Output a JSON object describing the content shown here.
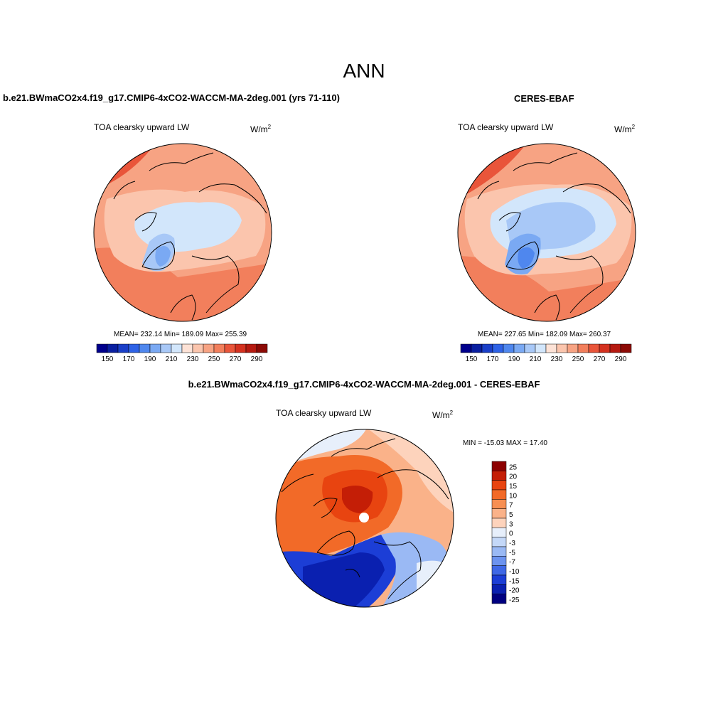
{
  "page_title": "ANN",
  "panels": [
    {
      "title": "b.e21.BWmaCO2x4.f19_g17.CMIP6-4xCO2-WACCM-MA-2deg.001 (yrs 71-110)",
      "variable": "TOA clearsky upward LW",
      "units_base": "W/m",
      "units_exp": "2",
      "stats": "MEAN= 232.14  Min= 189.09  Max= 255.39",
      "colorbar": {
        "colors": [
          "#00008c",
          "#0a1fa0",
          "#1a3fc8",
          "#2e62e6",
          "#4f87ee",
          "#7aa9f3",
          "#a8c8f7",
          "#d2e6fb",
          "#fde2d6",
          "#fbc5ad",
          "#f7a383",
          "#f27f5c",
          "#e9553a",
          "#d4311f",
          "#b51a10",
          "#8c0a05"
        ],
        "tick_labels": [
          "150",
          "170",
          "190",
          "210",
          "230",
          "250",
          "270",
          "290"
        ]
      }
    },
    {
      "title": "CERES-EBAF",
      "variable": "TOA clearsky upward LW",
      "units_base": "W/m",
      "units_exp": "2",
      "stats": "MEAN= 227.65  Min= 182.09  Max= 260.37",
      "colorbar": {
        "colors": [
          "#00008c",
          "#0a1fa0",
          "#1a3fc8",
          "#2e62e6",
          "#4f87ee",
          "#7aa9f3",
          "#a8c8f7",
          "#d2e6fb",
          "#fde2d6",
          "#fbc5ad",
          "#f7a383",
          "#f27f5c",
          "#e9553a",
          "#d4311f",
          "#b51a10",
          "#8c0a05"
        ],
        "tick_labels": [
          "150",
          "170",
          "190",
          "210",
          "230",
          "250",
          "270",
          "290"
        ]
      }
    },
    {
      "title": "b.e21.BWmaCO2x4.f19_g17.CMIP6-4xCO2-WACCM-MA-2deg.001 - CERES-EBAF",
      "variable": "TOA clearsky upward LW",
      "units_base": "W/m",
      "units_exp": "2",
      "stats": "MIN = -15.03 MAX =  17.40",
      "colorbar": {
        "colors": [
          "#8c0000",
          "#c41e06",
          "#e84410",
          "#f26a28",
          "#f78f52",
          "#fab289",
          "#fdd3bc",
          "#e7effb",
          "#c4d8f8",
          "#9ab9f4",
          "#6c93ef",
          "#3f68e6",
          "#1c3ed6",
          "#0a20b0",
          "#000080"
        ],
        "tick_labels": [
          "25",
          "20",
          "15",
          "10",
          "7",
          "5",
          "3",
          "0",
          "-3",
          "-5",
          "-7",
          "-10",
          "-15",
          "-20",
          "-25"
        ]
      }
    }
  ]
}
